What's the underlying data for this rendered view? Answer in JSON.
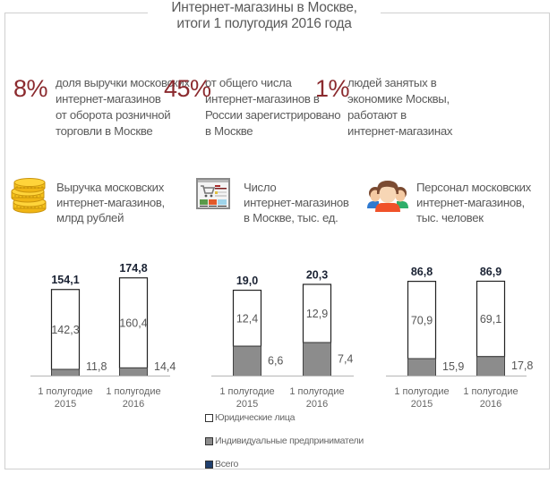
{
  "title": {
    "line1": "Интернет-магазины в Москве,",
    "line2": "итоги 1 полугодия 2016 года"
  },
  "stats": [
    {
      "value": "8%",
      "lines": [
        "доля выручки московских",
        "интернет-магазинов",
        "от оборота розничной",
        "торговли в Москве"
      ]
    },
    {
      "value": "45%",
      "lines": [
        "от общего числа",
        "интернет-магазинов в",
        "России зарегистрировано",
        "в Москве"
      ]
    },
    {
      "value": "1%",
      "lines": [
        "людей занятых в",
        "экономике Москвы,",
        "работают в",
        "интернет-магазинах"
      ]
    }
  ],
  "panels": [
    {
      "icon": "coins-icon",
      "lines": [
        "Выручка московских",
        "интернет-магазинов,",
        "млрд рублей"
      ]
    },
    {
      "icon": "online-shop-icon",
      "lines": [
        "Число",
        "интернет-магазинов",
        "в Москве, тыс. ед."
      ]
    },
    {
      "icon": "people-icon",
      "lines": [
        "Персонал московских",
        "интернет-магазинов,",
        "тыс. человек"
      ]
    }
  ],
  "colors": {
    "accent": "#8b2a2e",
    "legal_entities": "#ffffff",
    "individual_entrepreneurs": "#8c8c8c",
    "total": "#1f3f6e"
  },
  "legend": [
    {
      "label": "Юридические лица",
      "color": "#ffffff"
    },
    {
      "label": "Индивидуальные предприниматели",
      "color": "#8c8c8c"
    },
    {
      "label": "Всего",
      "color": "#1f3f6e"
    }
  ],
  "chart_data": [
    {
      "type": "bar",
      "stacked": true,
      "title": "Выручка московских интернет-магазинов, млрд рублей",
      "categories": [
        "1 полугодие\n2015",
        "1 полугодие\n2016"
      ],
      "category_lines": [
        [
          "1 полугодие",
          "2015"
        ],
        [
          "1 полугодие",
          "2016"
        ]
      ],
      "series": [
        {
          "name": "Индивидуальные предприниматели",
          "values": [
            11.8,
            14.4
          ],
          "labels": [
            "11,8",
            "14,4"
          ]
        },
        {
          "name": "Юридические лица",
          "values": [
            142.3,
            160.4
          ],
          "labels": [
            "142,3",
            "160,4"
          ]
        }
      ],
      "totals": {
        "name": "Всего",
        "values": [
          154.1,
          174.8
        ],
        "labels": [
          "154,1",
          "174,8"
        ]
      },
      "ylim": [
        0,
        180
      ],
      "grid": false,
      "legend": "bottom"
    },
    {
      "type": "bar",
      "stacked": true,
      "title": "Число интернет-магазинов в Москве, тыс. ед.",
      "categories": [
        "1 полугодие\n2015",
        "1 полугодие\n2016"
      ],
      "category_lines": [
        [
          "1 полугодие",
          "2015"
        ],
        [
          "1 полугодие",
          "2016"
        ]
      ],
      "series": [
        {
          "name": "Индивидуальные предприниматели",
          "values": [
            6.6,
            7.4
          ],
          "labels": [
            "6,6",
            "7,4"
          ]
        },
        {
          "name": "Юридические лица",
          "values": [
            12.4,
            12.9
          ],
          "labels": [
            "12,4",
            "12,9"
          ]
        }
      ],
      "totals": {
        "name": "Всего",
        "values": [
          19.0,
          20.3
        ],
        "labels": [
          "19,0",
          "20,3"
        ]
      },
      "ylim": [
        0,
        21
      ],
      "grid": false,
      "legend": "bottom"
    },
    {
      "type": "bar",
      "stacked": true,
      "title": "Персонал московских интернет-магазинов, тыс. человек",
      "categories": [
        "1 полугодие\n2015",
        "1 полугодие\n2016"
      ],
      "category_lines": [
        [
          "1 полугодие",
          "2015"
        ],
        [
          "1 полугодие",
          "2016"
        ]
      ],
      "series": [
        {
          "name": "Индивидуальные предприниматели",
          "values": [
            15.9,
            17.8
          ],
          "labels": [
            "15,9",
            "17,8"
          ]
        },
        {
          "name": "Юридические лица",
          "values": [
            70.9,
            69.1
          ],
          "labels": [
            "70,9",
            "69,1"
          ]
        }
      ],
      "totals": {
        "name": "Всего",
        "values": [
          86.8,
          86.9
        ],
        "labels": [
          "86,8",
          "86,9"
        ]
      },
      "ylim": [
        0,
        90
      ],
      "grid": false,
      "legend": "bottom"
    }
  ]
}
